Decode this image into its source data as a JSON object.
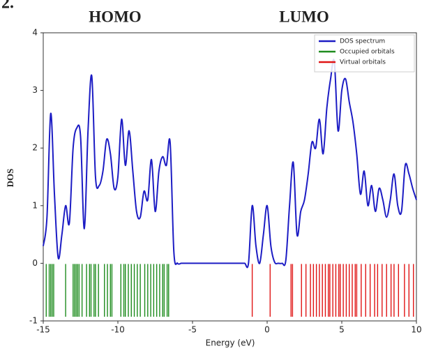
{
  "chart_data": {
    "type": "line",
    "panel_label": "2.",
    "annotations": [
      "HOMO",
      "LUMO"
    ],
    "xlabel": "Energy (eV)",
    "ylabel": "DOS",
    "xlim": [
      -15,
      10
    ],
    "ylim": [
      -1,
      4
    ],
    "xticks": [
      -15,
      -10,
      -5,
      0,
      5,
      10
    ],
    "yticks": [
      -1,
      0,
      1,
      2,
      3,
      4
    ],
    "legend": "upper right",
    "series": [
      {
        "name": "DOS spectrum",
        "type": "line",
        "color": "#1c1cc4",
        "x": [
          -15,
          -14.75,
          -14.5,
          -14.25,
          -14,
          -13.75,
          -13.5,
          -13.25,
          -13,
          -12.75,
          -12.5,
          -12.25,
          -12,
          -11.75,
          -11.5,
          -11.25,
          -11,
          -10.75,
          -10.5,
          -10.25,
          -10,
          -9.75,
          -9.5,
          -9.25,
          -9,
          -8.75,
          -8.5,
          -8.25,
          -8,
          -7.75,
          -7.5,
          -7.25,
          -7,
          -6.75,
          -6.5,
          -6.25,
          -6,
          -5.75,
          -5.5,
          -5.25,
          -5,
          -4.75,
          -4.5,
          -4.25,
          -4,
          -3.75,
          -3.5,
          -3.25,
          -3,
          -2.75,
          -2.5,
          -2.25,
          -2,
          -1.75,
          -1.5,
          -1.25,
          -1,
          -0.75,
          -0.5,
          -0.25,
          0,
          0.25,
          0.5,
          0.75,
          1,
          1.25,
          1.5,
          1.75,
          2,
          2.25,
          2.5,
          2.75,
          3,
          3.25,
          3.5,
          3.75,
          4,
          4.25,
          4.5,
          4.75,
          5,
          5.25,
          5.5,
          5.75,
          6,
          6.25,
          6.5,
          6.75,
          7,
          7.25,
          7.5,
          7.75,
          8,
          8.25,
          8.5,
          8.75,
          9,
          9.25,
          9.5,
          9.75,
          10
        ],
        "values": [
          0.3,
          0.8,
          2.6,
          1.2,
          0.1,
          0.5,
          1.0,
          0.7,
          2.0,
          2.35,
          2.2,
          0.6,
          2.3,
          3.25,
          1.5,
          1.35,
          1.6,
          2.15,
          1.9,
          1.3,
          1.5,
          2.5,
          1.7,
          2.3,
          1.6,
          0.9,
          0.8,
          1.25,
          1.1,
          1.8,
          0.9,
          1.6,
          1.85,
          1.7,
          2.1,
          0.2,
          0,
          0,
          0,
          0,
          0,
          0,
          0,
          0,
          0,
          0,
          0,
          0,
          0,
          0,
          0,
          0,
          0,
          0,
          0,
          0,
          1.0,
          0.3,
          0.0,
          0.5,
          1.0,
          0.3,
          0.02,
          0,
          0,
          0.05,
          1.0,
          1.75,
          0.5,
          0.9,
          1.1,
          1.55,
          2.1,
          2.0,
          2.5,
          1.9,
          2.7,
          3.2,
          3.5,
          2.3,
          3.0,
          3.2,
          2.8,
          2.45,
          1.9,
          1.2,
          1.6,
          1.0,
          1.35,
          0.9,
          1.3,
          1.1,
          0.8,
          1.1,
          1.55,
          1.0,
          0.9,
          1.7,
          1.55,
          1.3,
          1.1
        ]
      },
      {
        "name": "Occupied orbitals",
        "type": "event",
        "color": "#1e8c1e",
        "x": [
          -14.8,
          -14.6,
          -14.5,
          -14.4,
          -14.3,
          -13.5,
          -13.0,
          -12.9,
          -12.8,
          -12.7,
          -12.6,
          -12.4,
          -12.1,
          -11.9,
          -11.8,
          -11.6,
          -11.5,
          -11.3,
          -10.9,
          -10.7,
          -10.5,
          -10.4,
          -9.8,
          -9.6,
          -9.5,
          -9.3,
          -9.1,
          -8.9,
          -8.7,
          -8.5,
          -8.2,
          -8.0,
          -7.8,
          -7.6,
          -7.4,
          -7.2,
          -7.0,
          -6.9,
          -6.7,
          -6.6
        ]
      },
      {
        "name": "Virtual orbitals",
        "type": "event",
        "color": "#e01414",
        "x": [
          -1.0,
          0.2,
          1.6,
          1.7,
          2.3,
          2.6,
          2.9,
          3.1,
          3.3,
          3.5,
          3.7,
          3.9,
          4.1,
          4.2,
          4.4,
          4.6,
          4.8,
          4.9,
          5.1,
          5.3,
          5.5,
          5.7,
          5.9,
          6.0,
          6.3,
          6.6,
          6.9,
          7.2,
          7.4,
          7.7,
          8.0,
          8.3,
          8.5,
          8.8,
          9.2,
          9.5,
          9.8
        ]
      }
    ]
  }
}
